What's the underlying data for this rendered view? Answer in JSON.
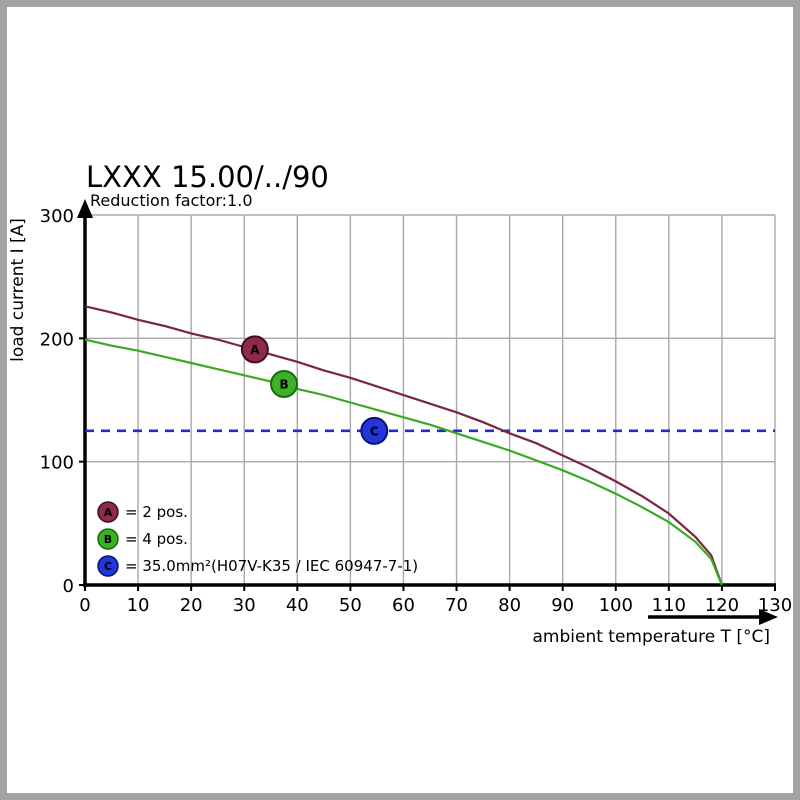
{
  "frame": {
    "border_color": "#a3a3a3",
    "background": "#ffffff"
  },
  "chart_data": {
    "type": "line",
    "title": "LXXX 15.00/../90",
    "subtitle": "Reduction factor:1.0",
    "xlabel": "ambient temperature T [°C]",
    "ylabel": "load current I [A]",
    "xlim": [
      0,
      130
    ],
    "ylim": [
      0,
      300
    ],
    "x_ticks": [
      0,
      10,
      20,
      30,
      40,
      50,
      60,
      70,
      80,
      90,
      100,
      110,
      120,
      130
    ],
    "y_ticks": [
      0,
      100,
      200,
      300
    ],
    "grid": true,
    "legend_position": "bottom-left-inside",
    "series": [
      {
        "name": "A",
        "label": "= 2 pos.",
        "color": "#7c2443",
        "marker_fill": "#8e2a4a",
        "marker_stroke": "#3f0e1f",
        "marker_at": {
          "x": 32,
          "y": 191
        },
        "points": [
          [
            0,
            226
          ],
          [
            5,
            221
          ],
          [
            10,
            215
          ],
          [
            15,
            210
          ],
          [
            20,
            204
          ],
          [
            25,
            199
          ],
          [
            30,
            193
          ],
          [
            35,
            187
          ],
          [
            40,
            181
          ],
          [
            45,
            174
          ],
          [
            50,
            168
          ],
          [
            55,
            161
          ],
          [
            60,
            154
          ],
          [
            65,
            147
          ],
          [
            70,
            140
          ],
          [
            75,
            132
          ],
          [
            80,
            123
          ],
          [
            85,
            115
          ],
          [
            90,
            105
          ],
          [
            95,
            95
          ],
          [
            100,
            84
          ],
          [
            105,
            72
          ],
          [
            110,
            58
          ],
          [
            115,
            39
          ],
          [
            118,
            24
          ],
          [
            120,
            0
          ]
        ]
      },
      {
        "name": "B",
        "label": "= 4 pos.",
        "color": "#3aa926",
        "marker_fill": "#3cb027",
        "marker_stroke": "#1c6a10",
        "marker_at": {
          "x": 37.5,
          "y": 163
        },
        "points": [
          [
            0,
            199
          ],
          [
            5,
            194
          ],
          [
            10,
            190
          ],
          [
            15,
            185
          ],
          [
            20,
            180
          ],
          [
            25,
            175
          ],
          [
            30,
            170
          ],
          [
            35,
            165
          ],
          [
            40,
            159
          ],
          [
            45,
            154
          ],
          [
            50,
            148
          ],
          [
            55,
            142
          ],
          [
            60,
            136
          ],
          [
            65,
            130
          ],
          [
            70,
            123
          ],
          [
            75,
            116
          ],
          [
            80,
            109
          ],
          [
            85,
            101
          ],
          [
            90,
            93
          ],
          [
            95,
            84
          ],
          [
            100,
            74
          ],
          [
            105,
            63
          ],
          [
            110,
            51
          ],
          [
            115,
            35
          ],
          [
            118,
            21
          ],
          [
            120,
            0
          ]
        ]
      }
    ],
    "threshold": {
      "name": "C",
      "label": "= 35.0mm²(H07V-K35 / IEC 60947-7-1)",
      "color": "#2328d6",
      "value": 125,
      "line_style": "dashed",
      "marker_fill": "#2336d9",
      "marker_stroke": "#0d1178",
      "marker_at": {
        "x": 54.5,
        "y": 125
      }
    }
  }
}
